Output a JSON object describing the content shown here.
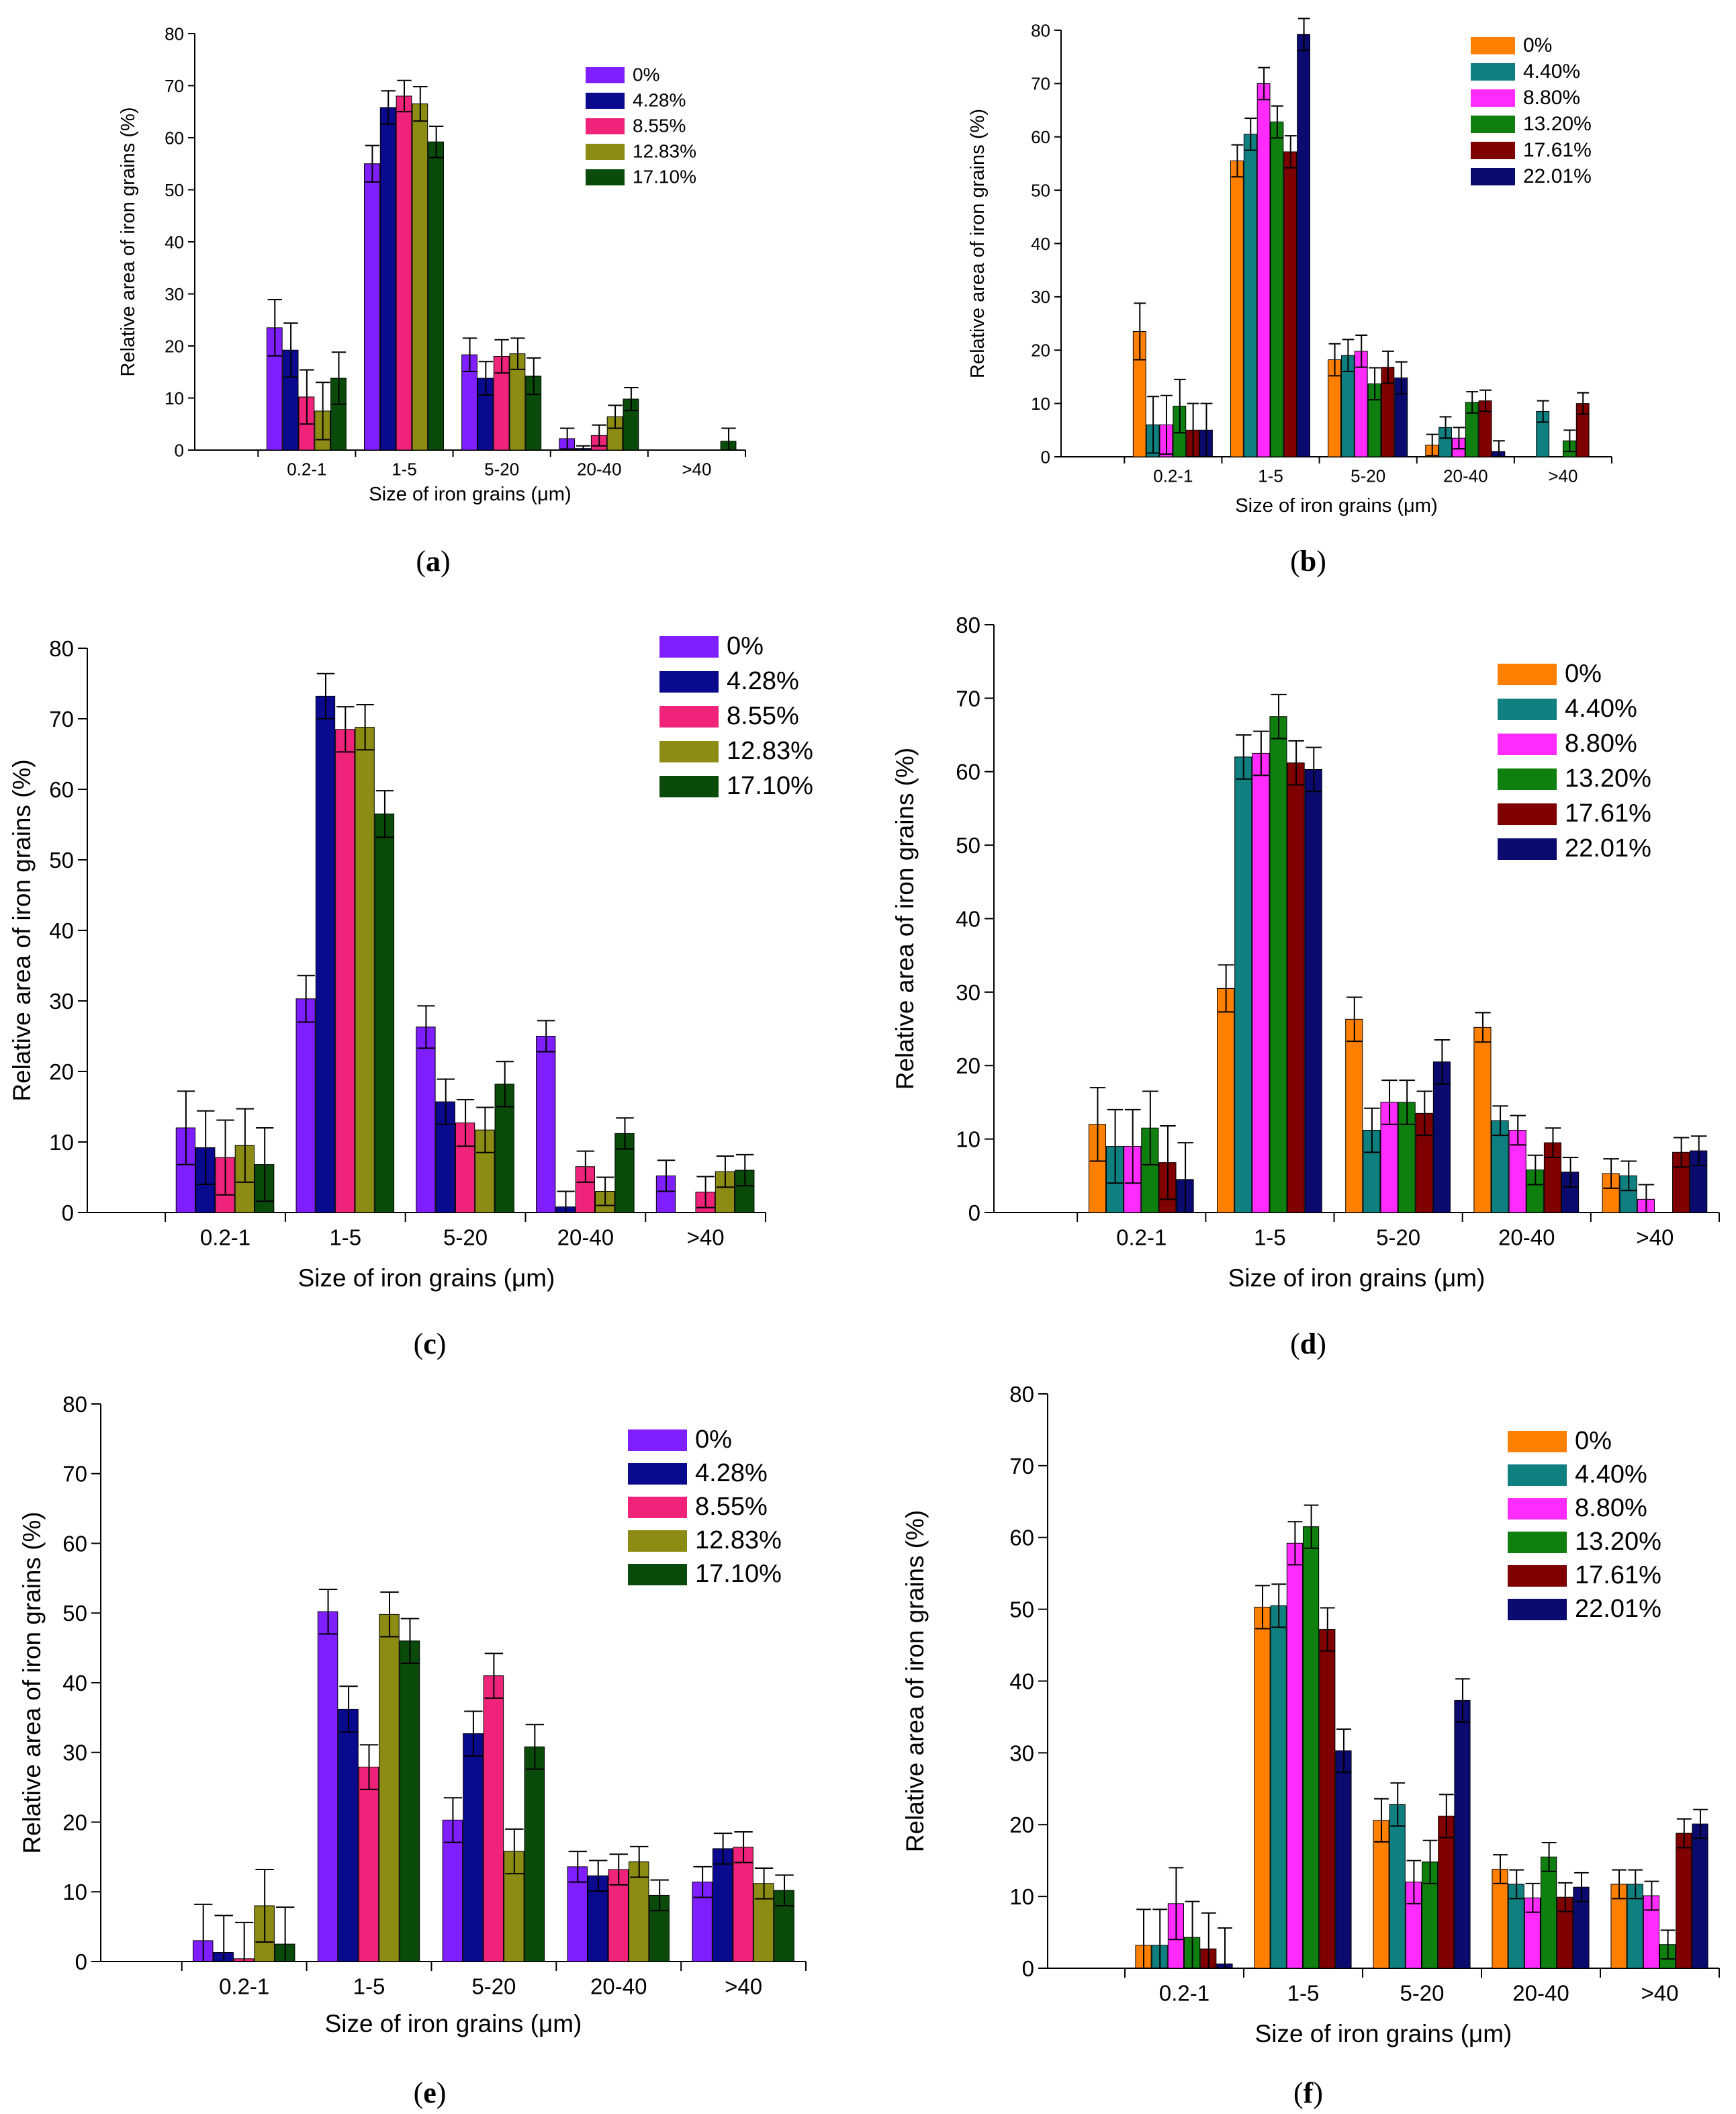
{
  "chart_data": [
    {
      "type": "bar",
      "panel": "a",
      "caption_open": "(",
      "caption_letter": "a",
      "caption_close": ")",
      "xlabel": "Size of iron grains (μm)",
      "ylabel": "Relative area of iron grains (%)",
      "ylim": [
        0,
        80
      ],
      "yticks": [
        "0",
        "10",
        "20",
        "30",
        "40",
        "50",
        "60",
        "70",
        "80"
      ],
      "categories": [
        "0.2-1",
        "1-5",
        "5-20",
        "20-40",
        ">40"
      ],
      "legend_position": "top-right",
      "series": [
        {
          "name": "0%",
          "color": "#7f1fff",
          "values": [
            23.5,
            55,
            18.3,
            2.2,
            0
          ],
          "errors": [
            5.4,
            3.5,
            3.2,
            2.0,
            0
          ]
        },
        {
          "name": "4.28%",
          "color": "#0a0a8f",
          "values": [
            19.2,
            65.8,
            13.8,
            0.3,
            0
          ],
          "errors": [
            5.2,
            3.2,
            3.2,
            0.5,
            0
          ]
        },
        {
          "name": "8.55%",
          "color": "#f0237a",
          "values": [
            10.2,
            68,
            18,
            2.8,
            0
          ],
          "errors": [
            5.2,
            3.0,
            3.2,
            2.0,
            0
          ]
        },
        {
          "name": "12.83%",
          "color": "#8c8c14",
          "values": [
            7.5,
            66.5,
            18.5,
            6.4,
            0
          ],
          "errors": [
            5.5,
            3.3,
            3.0,
            2.2,
            0
          ]
        },
        {
          "name": "17.10%",
          "color": "#0a4a0a",
          "values": [
            13.8,
            59.2,
            14.2,
            9.8,
            1.7
          ],
          "errors": [
            5.0,
            3.0,
            3.5,
            2.2,
            2.5
          ]
        }
      ]
    },
    {
      "type": "bar",
      "panel": "b",
      "caption_open": "(",
      "caption_letter": "b",
      "caption_close": ")",
      "xlabel": "Size of iron grains (μm)",
      "ylabel": "Relative area of iron grains (%)",
      "ylim": [
        0,
        80
      ],
      "yticks": [
        "0",
        "10",
        "20",
        "30",
        "40",
        "50",
        "60",
        "70",
        "80"
      ],
      "categories": [
        "0.2-1",
        "1-5",
        "5-20",
        "20-40",
        ">40"
      ],
      "legend_position": "top-right",
      "series": [
        {
          "name": "0%",
          "color": "#ff8000",
          "values": [
            23.5,
            55.5,
            18.2,
            2.2,
            0
          ],
          "errors": [
            5.3,
            3.0,
            3.0,
            2.0,
            0
          ]
        },
        {
          "name": "4.40%",
          "color": "#0f7f7f",
          "values": [
            6,
            60.5,
            19,
            5.5,
            8.5
          ],
          "errors": [
            5.3,
            3.0,
            3.0,
            2.0,
            2.0
          ]
        },
        {
          "name": "8.80%",
          "color": "#ff2bff",
          "values": [
            6,
            70,
            19.8,
            3.5,
            0
          ],
          "errors": [
            5.5,
            3.0,
            3.0,
            2.0,
            0
          ]
        },
        {
          "name": "13.20%",
          "color": "#0f7f0f",
          "values": [
            9.5,
            62.8,
            13.7,
            10.2,
            3
          ],
          "errors": [
            5.0,
            3.0,
            3.0,
            2.0,
            2.0
          ]
        },
        {
          "name": "17.61%",
          "color": "#7f0000",
          "values": [
            5,
            57.2,
            16.8,
            10.5,
            10
          ],
          "errors": [
            5.0,
            3.0,
            3.0,
            2.0,
            2.0
          ]
        },
        {
          "name": "22.01%",
          "color": "#0a0a6f",
          "values": [
            5,
            79.2,
            14.8,
            1,
            0
          ],
          "errors": [
            5.0,
            3.0,
            3.0,
            2.0,
            0
          ]
        }
      ]
    },
    {
      "type": "bar",
      "panel": "c",
      "caption_open": "(",
      "caption_letter": "c",
      "caption_close": ")",
      "xlabel": "Size of iron grains (μm)",
      "ylabel": "Relative area of iron grains (%)",
      "ylim": [
        0,
        80
      ],
      "yticks": [
        "0",
        "10",
        "20",
        "30",
        "40",
        "50",
        "60",
        "70",
        "80"
      ],
      "categories": [
        "0.2-1",
        "1-5",
        "5-20",
        "20-40",
        ">40"
      ],
      "legend_position": "top-right",
      "series": [
        {
          "name": "0%",
          "color": "#7f1fff",
          "values": [
            12,
            30.3,
            26.3,
            25,
            5.2
          ],
          "errors": [
            5.2,
            3.3,
            3.0,
            2.2,
            2.2
          ]
        },
        {
          "name": "4.28%",
          "color": "#0a0a8f",
          "values": [
            9.2,
            73.2,
            15.7,
            0.8,
            0
          ],
          "errors": [
            5.2,
            3.2,
            3.2,
            2.2,
            0
          ]
        },
        {
          "name": "8.55%",
          "color": "#f0237a",
          "values": [
            7.8,
            68.5,
            12.7,
            6.5,
            2.9
          ],
          "errors": [
            5.3,
            3.2,
            3.3,
            2.2,
            2.2
          ]
        },
        {
          "name": "12.83%",
          "color": "#8c8c14",
          "values": [
            9.5,
            68.8,
            11.7,
            3,
            5.8
          ],
          "errors": [
            5.2,
            3.2,
            3.2,
            2.0,
            2.2
          ]
        },
        {
          "name": "17.10%",
          "color": "#0a4a0a",
          "values": [
            6.8,
            56.5,
            18.2,
            11.2,
            6
          ],
          "errors": [
            5.2,
            3.3,
            3.2,
            2.2,
            2.2
          ]
        }
      ]
    },
    {
      "type": "bar",
      "panel": "d",
      "caption_open": "(",
      "caption_letter": "d",
      "caption_close": ")",
      "xlabel": "Size of iron grains (μm)",
      "ylabel": "Relative area of iron grains (%)",
      "ylim": [
        0,
        80
      ],
      "yticks": [
        "0",
        "10",
        "20",
        "30",
        "40",
        "50",
        "60",
        "70",
        "80"
      ],
      "categories": [
        "0.2-1",
        "1-5",
        "5-20",
        "20-40",
        ">40"
      ],
      "legend_position": "top-right",
      "series": [
        {
          "name": "0%",
          "color": "#ff8000",
          "values": [
            12,
            30.5,
            26.3,
            25.2,
            5.3
          ],
          "errors": [
            5.0,
            3.2,
            3.0,
            2.0,
            2.0
          ]
        },
        {
          "name": "4.40%",
          "color": "#0f7f7f",
          "values": [
            9,
            62,
            11.2,
            12.5,
            5
          ],
          "errors": [
            5.0,
            3.0,
            3.0,
            2.0,
            2.0
          ]
        },
        {
          "name": "8.80%",
          "color": "#ff2bff",
          "values": [
            9,
            62.5,
            15,
            11.2,
            1.8
          ],
          "errors": [
            5.0,
            3.0,
            3.0,
            2.0,
            2.0
          ]
        },
        {
          "name": "13.20%",
          "color": "#0f7f0f",
          "values": [
            11.5,
            67.5,
            15,
            5.8,
            0
          ],
          "errors": [
            5.0,
            3.0,
            3.0,
            2.0,
            0
          ]
        },
        {
          "name": "17.61%",
          "color": "#7f0000",
          "values": [
            6.8,
            61.2,
            13.5,
            9.5,
            8.2
          ],
          "errors": [
            5.0,
            3.0,
            3.0,
            2.0,
            2.0
          ]
        },
        {
          "name": "22.01%",
          "color": "#0a0a6f",
          "values": [
            4.5,
            60.3,
            20.5,
            5.5,
            8.4
          ],
          "errors": [
            5.0,
            3.0,
            3.0,
            2.0,
            2.0
          ]
        }
      ]
    },
    {
      "type": "bar",
      "panel": "e",
      "caption_open": "(",
      "caption_letter": "e",
      "caption_close": ")",
      "xlabel": "Size of iron grains (μm)",
      "ylabel": "Relative area of iron grains (%)",
      "ylim": [
        0,
        80
      ],
      "yticks": [
        "0",
        "10",
        "20",
        "30",
        "40",
        "50",
        "60",
        "70",
        "80"
      ],
      "categories": [
        "0.2-1",
        "1-5",
        "5-20",
        "20-40",
        ">40"
      ],
      "legend_position": "top-right",
      "series": [
        {
          "name": "0%",
          "color": "#7f1fff",
          "values": [
            3,
            50.2,
            20.3,
            13.6,
            11.4
          ],
          "errors": [
            5.2,
            3.2,
            3.2,
            2.2,
            2.2
          ]
        },
        {
          "name": "4.28%",
          "color": "#0a0a8f",
          "values": [
            1.3,
            36.2,
            32.7,
            12.3,
            16.2
          ],
          "errors": [
            5.3,
            3.3,
            3.2,
            2.2,
            2.2
          ]
        },
        {
          "name": "8.55%",
          "color": "#f0237a",
          "values": [
            0.4,
            27.9,
            41,
            13.2,
            16.4
          ],
          "errors": [
            5.2,
            3.2,
            3.2,
            2.2,
            2.2
          ]
        },
        {
          "name": "12.83%",
          "color": "#8c8c14",
          "values": [
            8,
            49.8,
            15.8,
            14.3,
            11.2
          ],
          "errors": [
            5.2,
            3.2,
            3.2,
            2.2,
            2.2
          ]
        },
        {
          "name": "17.10%",
          "color": "#0a4a0a",
          "values": [
            2.5,
            46,
            30.8,
            9.5,
            10.2
          ],
          "errors": [
            5.3,
            3.2,
            3.2,
            2.2,
            2.2
          ]
        }
      ]
    },
    {
      "type": "bar",
      "panel": "f",
      "caption_open": "(",
      "caption_letter": "f",
      "caption_close": ")",
      "xlabel": "Size of iron grains (μm)",
      "ylabel": "Relative area of iron grains (%)",
      "ylim": [
        0,
        80
      ],
      "yticks": [
        "0",
        "10",
        "20",
        "30",
        "40",
        "50",
        "60",
        "70",
        "80"
      ],
      "categories": [
        "0.2-1",
        "1-5",
        "5-20",
        "20-40",
        ">40"
      ],
      "legend_position": "top-right",
      "series": [
        {
          "name": "0%",
          "color": "#ff8000",
          "values": [
            3.2,
            50.3,
            20.6,
            13.8,
            11.7
          ],
          "errors": [
            5.0,
            3.0,
            3.0,
            2.0,
            2.0
          ]
        },
        {
          "name": "4.40%",
          "color": "#0f7f7f",
          "values": [
            3.2,
            50.5,
            22.8,
            11.7,
            11.7
          ],
          "errors": [
            5.0,
            3.0,
            3.0,
            2.0,
            2.0
          ]
        },
        {
          "name": "8.80%",
          "color": "#ff2bff",
          "values": [
            9,
            59.2,
            12,
            9.8,
            10.1
          ],
          "errors": [
            5.0,
            3.0,
            3.0,
            2.0,
            2.0
          ]
        },
        {
          "name": "13.20%",
          "color": "#0f7f0f",
          "values": [
            4.3,
            61.5,
            14.8,
            15.5,
            3.3
          ],
          "errors": [
            5.0,
            3.0,
            3.0,
            2.0,
            2.0
          ]
        },
        {
          "name": "17.61%",
          "color": "#7f0000",
          "values": [
            2.7,
            47.2,
            21.2,
            9.9,
            18.8
          ],
          "errors": [
            5.0,
            3.0,
            3.0,
            2.0,
            2.0
          ]
        },
        {
          "name": "22.01%",
          "color": "#0a0a6f",
          "values": [
            0.6,
            30.3,
            37.3,
            11.3,
            20.1
          ],
          "errors": [
            5.0,
            3.0,
            3.0,
            2.0,
            2.0
          ]
        }
      ]
    }
  ]
}
